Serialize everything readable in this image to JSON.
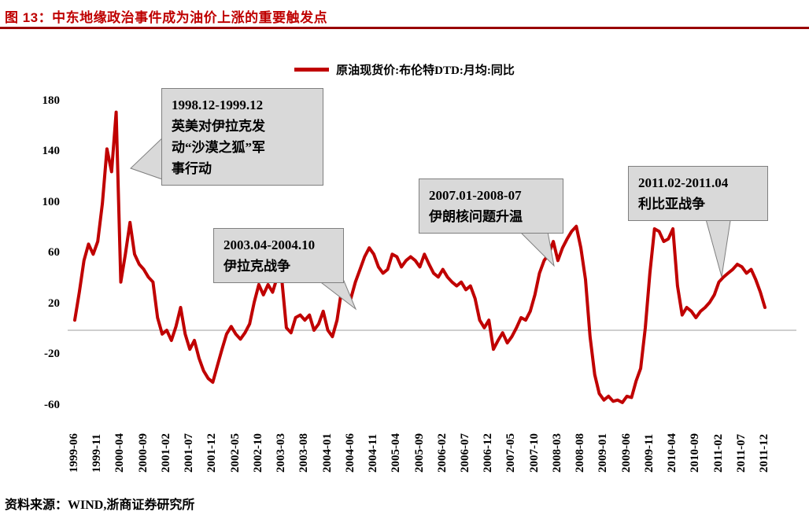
{
  "header": {
    "title": "图 13：中东地缘政治事件成为油价上涨的重要触发点"
  },
  "legend": {
    "label": "原油现货价:布伦特DTD:月均:同比",
    "line_color": "#c00000"
  },
  "annotations": [
    {
      "lines": [
        "1998.12-1999.12",
        "英美对伊拉克发",
        "动“沙漠之狐”军",
        "事行动"
      ]
    },
    {
      "lines": [
        "2003.04-2004.10",
        "伊拉克战争"
      ]
    },
    {
      "lines": [
        "2007.01-2008-07",
        "伊朗核问题升温"
      ]
    },
    {
      "lines": [
        "2011.02-2011.04",
        "利比亚战争"
      ]
    }
  ],
  "source": {
    "text": "资料来源：WIND,浙商证券研究所"
  },
  "chart_data": {
    "type": "line",
    "title": "中东地缘政治事件成为油价上涨的重要触发点",
    "xlabel": "",
    "ylabel": "",
    "ylim": [
      -60,
      180
    ],
    "grid": false,
    "legend_position": "top-center",
    "x_start": "1999-06",
    "x_end": "2011-12",
    "x_frequency": "monthly",
    "x_tick_labels": [
      "1999-06",
      "1999-11",
      "2000-04",
      "2000-09",
      "2001-02",
      "2001-07",
      "2001-12",
      "2002-05",
      "2002-10",
      "2003-03",
      "2003-08",
      "2004-01",
      "2004-06",
      "2004-11",
      "2005-04",
      "2005-09",
      "2006-02",
      "2006-07",
      "2006-12",
      "2007-05",
      "2007-10",
      "2008-03",
      "2008-08",
      "2009-01",
      "2009-06",
      "2009-11",
      "2010-04",
      "2010-09",
      "2011-02",
      "2011-07",
      "2011-12"
    ],
    "y_ticks": [
      180,
      140,
      100,
      60,
      20,
      -20,
      -60
    ],
    "series": [
      {
        "name": "原油现货价:布伦特DTD:月均:同比",
        "color": "#c00000",
        "values": [
          8,
          30,
          55,
          68,
          60,
          70,
          100,
          143,
          125,
          172,
          38,
          60,
          85,
          60,
          52,
          48,
          42,
          38,
          10,
          -3,
          0,
          -8,
          3,
          18,
          -3,
          -15,
          -8,
          -22,
          -32,
          -38,
          -41,
          -28,
          -15,
          -3,
          3,
          -3,
          -7,
          -2,
          5,
          22,
          36,
          28,
          36,
          30,
          42,
          40,
          2,
          -2,
          10,
          12,
          8,
          12,
          0,
          5,
          15,
          0,
          -5,
          8,
          32,
          28,
          25,
          38,
          48,
          58,
          65,
          60,
          50,
          45,
          48,
          60,
          58,
          50,
          55,
          58,
          55,
          50,
          60,
          52,
          45,
          42,
          48,
          42,
          38,
          35,
          38,
          32,
          35,
          25,
          8,
          2,
          8,
          -15,
          -8,
          -2,
          -10,
          -5,
          2,
          10,
          8,
          15,
          28,
          45,
          55,
          60,
          70,
          55,
          65,
          72,
          78,
          82,
          65,
          40,
          -5,
          -35,
          -50,
          -55,
          -52,
          -56,
          -55,
          -57,
          -52,
          -53,
          -40,
          -30,
          2,
          45,
          80,
          78,
          70,
          72,
          80,
          35,
          12,
          18,
          15,
          10,
          15,
          18,
          22,
          28,
          38,
          42,
          45,
          48,
          52,
          50,
          45,
          48,
          40,
          30,
          18
        ]
      }
    ]
  }
}
